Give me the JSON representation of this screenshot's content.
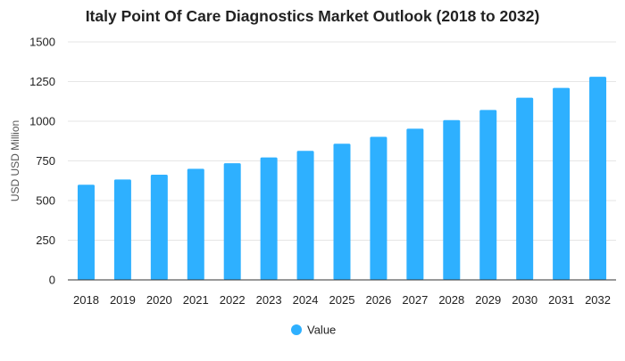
{
  "colors": {
    "bar": "#2eb0ff",
    "grid": "#e6e6e6",
    "axis": "#333333",
    "text": "#222222"
  },
  "chart_data": {
    "type": "bar",
    "title": "Italy Point Of Care Diagnostics Market Outlook (2018 to 2032)",
    "xlabel": "",
    "ylabel": "USD USD Million",
    "ylim": [
      0,
      1500
    ],
    "yticks": [
      0,
      250,
      500,
      750,
      1000,
      1250,
      1500
    ],
    "grid": true,
    "legend_position": "bottom",
    "categories": [
      "2018",
      "2019",
      "2020",
      "2021",
      "2022",
      "2023",
      "2024",
      "2025",
      "2026",
      "2027",
      "2028",
      "2029",
      "2030",
      "2031",
      "2032"
    ],
    "series": [
      {
        "name": "Value",
        "values": [
          600,
          633,
          663,
          700,
          735,
          772,
          813,
          858,
          902,
          953,
          1007,
          1071,
          1148,
          1210,
          1280
        ]
      }
    ]
  }
}
